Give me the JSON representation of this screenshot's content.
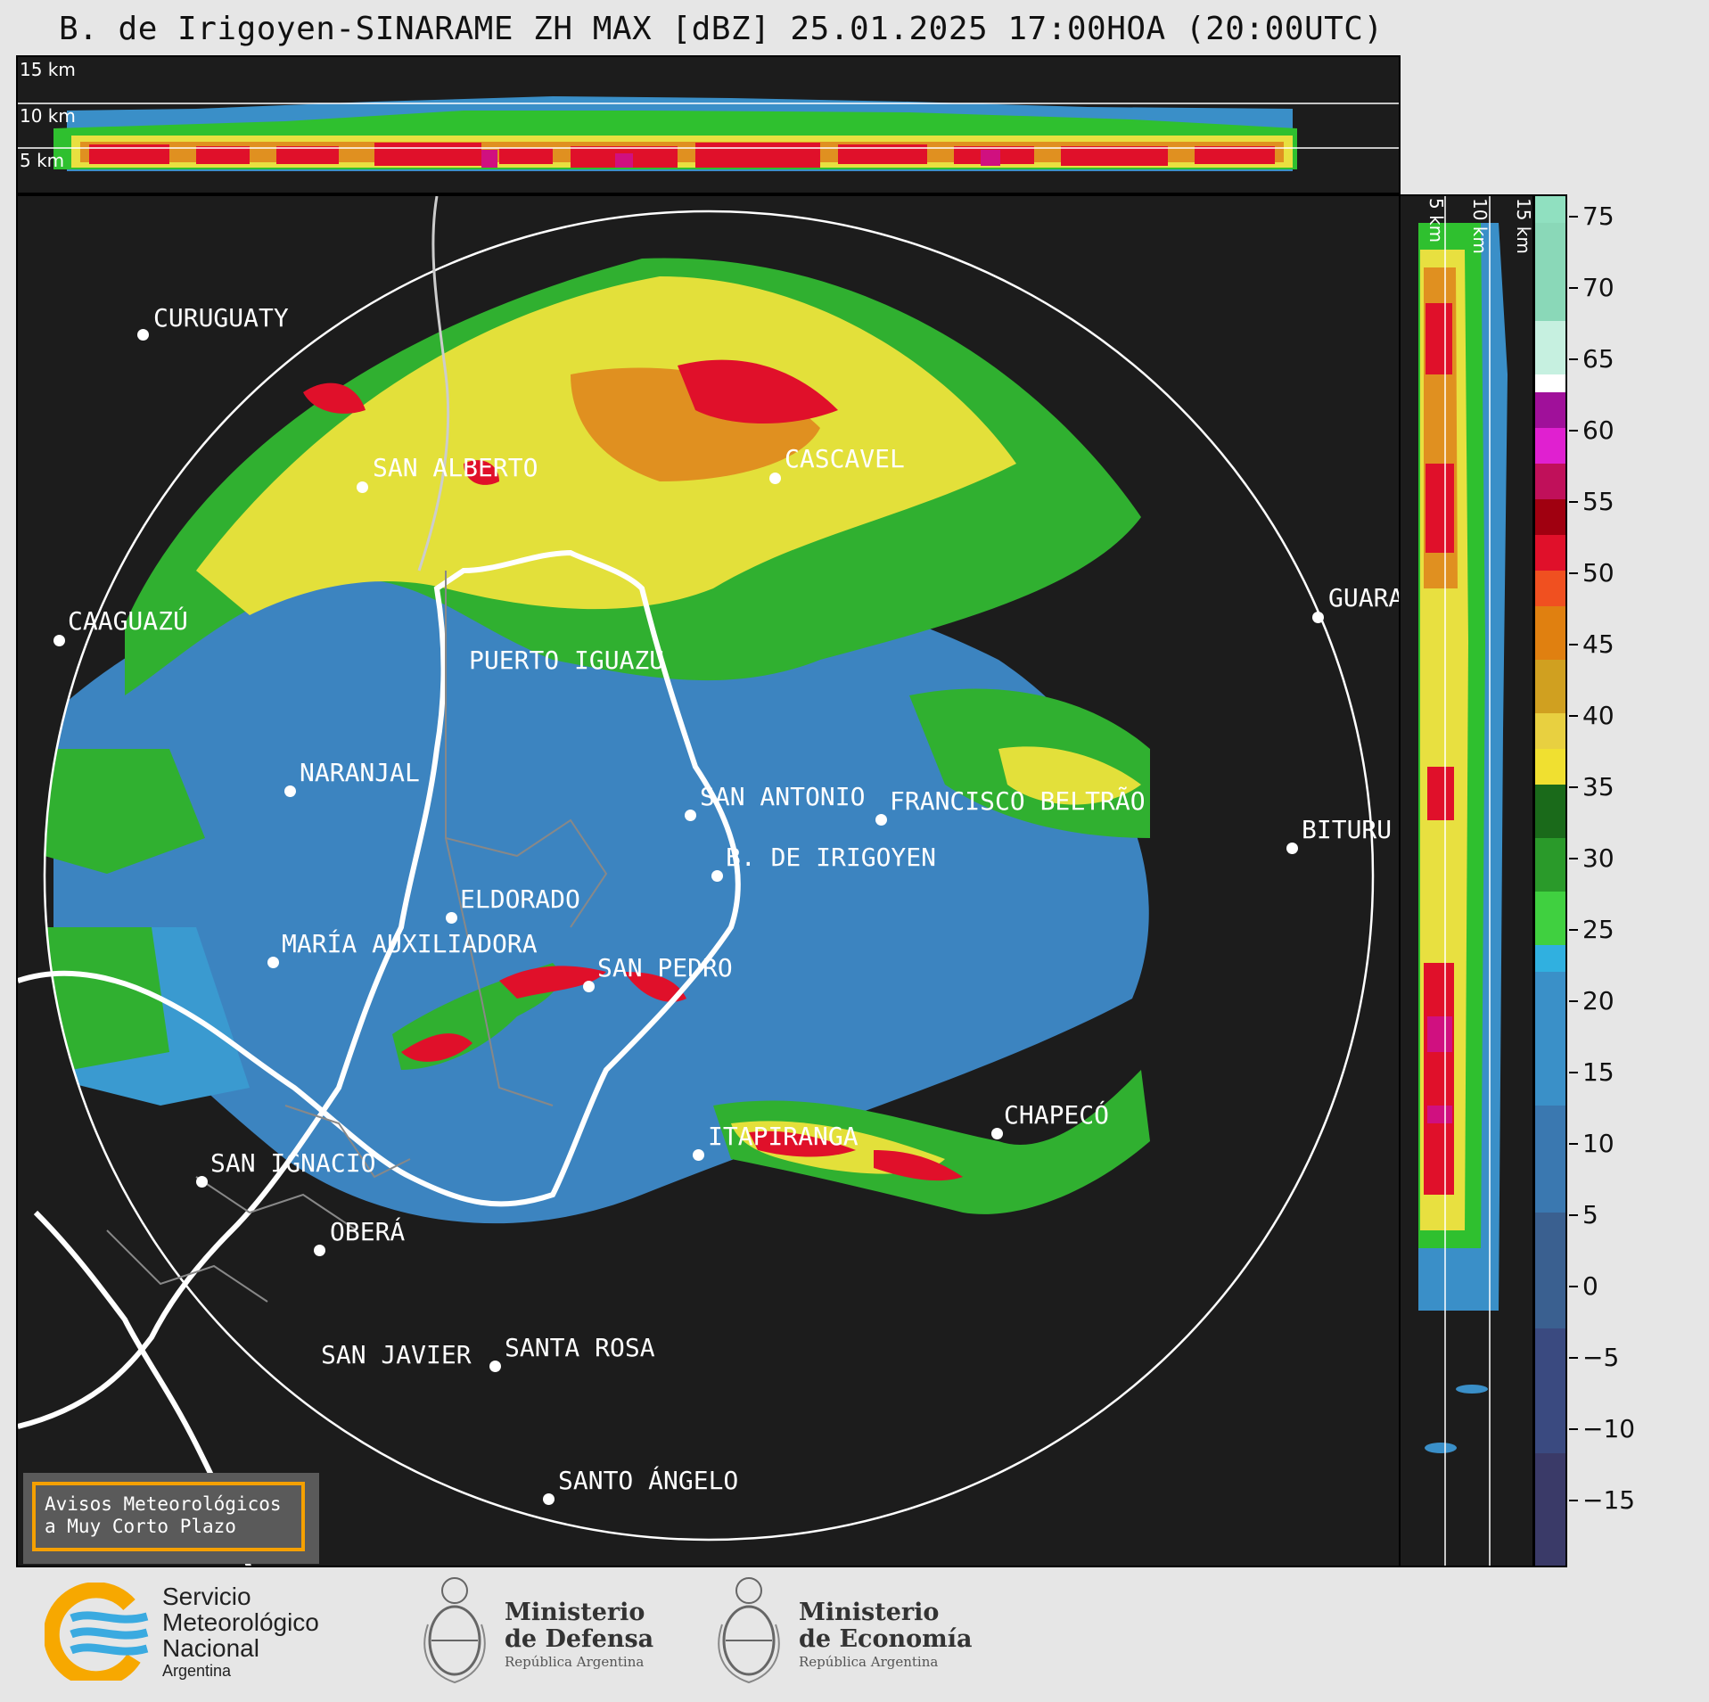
{
  "title": "B. de Irigoyen-SINARAME ZH MAX [dBZ] 25.01.2025 17:00HOA (20:00UTC)",
  "top_profile": {
    "labels": [
      "15 km",
      "10 km",
      "5 km"
    ]
  },
  "side_profile": {
    "labels": [
      "5 km",
      "10 km",
      "15 km"
    ]
  },
  "colorbar": {
    "unit": "dBZ",
    "ticks": [
      "75",
      "70",
      "65",
      "60",
      "55",
      "50",
      "45",
      "40",
      "35",
      "30",
      "25",
      "20",
      "15",
      "10",
      "5",
      "0",
      "−5",
      "−10",
      "−15"
    ]
  },
  "cities": [
    {
      "name": "CURUGUATY"
    },
    {
      "name": "SAN ALBERTO"
    },
    {
      "name": "CASCAVEL"
    },
    {
      "name": "CAAGUAZÚ"
    },
    {
      "name": "GUARA"
    },
    {
      "name": "PUERTO IGUAZÚ"
    },
    {
      "name": "NARANJAL"
    },
    {
      "name": "SAN ANTONIO"
    },
    {
      "name": "FRANCISCO BELTRÃO"
    },
    {
      "name": "BITURU"
    },
    {
      "name": "B. DE IRIGOYEN"
    },
    {
      "name": "ELDORADO"
    },
    {
      "name": "MARÍA AUXILIADORA"
    },
    {
      "name": "SAN PEDRO"
    },
    {
      "name": "ITAPIRANGA"
    },
    {
      "name": "CHAPECÓ"
    },
    {
      "name": "SAN IGNACIO"
    },
    {
      "name": "OBERÁ"
    },
    {
      "name": "SAN JAVIER"
    },
    {
      "name": "SANTA ROSA"
    },
    {
      "name": "SANTO ÁNGELO"
    }
  ],
  "warning_box": {
    "line1": "Avisos Meteorológicos",
    "line2": "a Muy Corto Plazo"
  },
  "footer": {
    "smn": {
      "line1": "Servicio",
      "line2": "Meteorológico",
      "line3": "Nacional",
      "line4": "Argentina"
    },
    "defensa": {
      "line1": "Ministerio",
      "line2": "de Defensa",
      "line3": "República Argentina"
    },
    "economia": {
      "line1": "Ministerio",
      "line2": "de Economía",
      "line3": "República Argentina"
    }
  },
  "colors": {
    "background": "#1c1c1c",
    "page": "#e6e6e6",
    "warning_border": "#f5a000"
  }
}
